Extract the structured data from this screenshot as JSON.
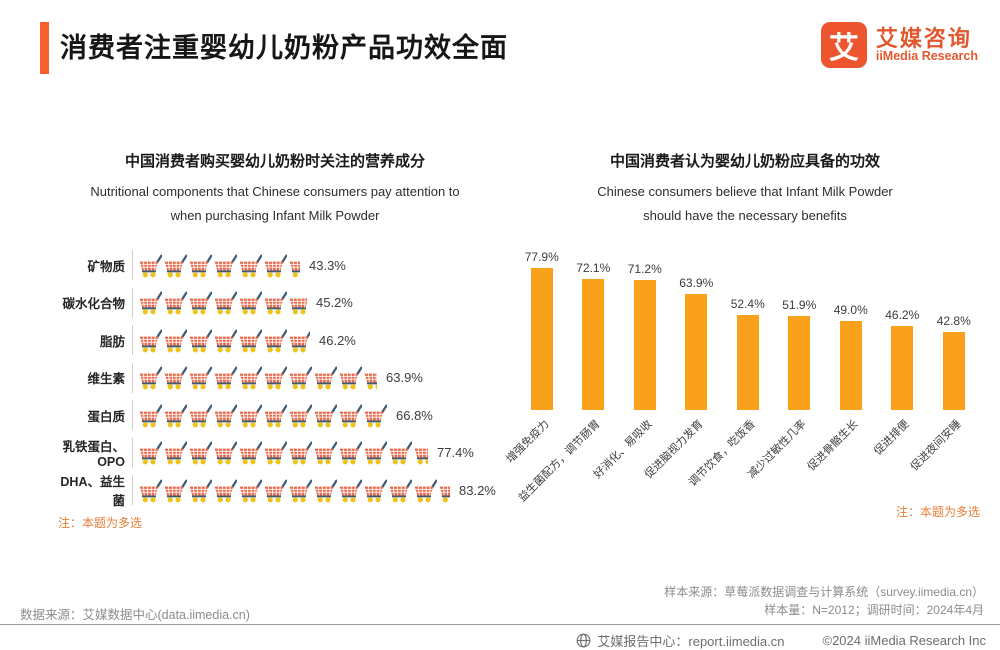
{
  "header": {
    "title": "消费者注重婴幼儿奶粉产品功效全面",
    "logo_mark": "艾",
    "logo_cn": "艾媒咨询",
    "logo_en": "iiMedia Research"
  },
  "chart_data": [
    {
      "type": "bar",
      "variant": "pictogram",
      "icon": "shopping-cart-icon",
      "icons_per_100_percent": 15,
      "title": "中国消费者购买婴幼儿奶粉时关注的营养成分",
      "subtitle_lines": [
        "Nutritional components that Chinese consumers pay attention to",
        "when purchasing Infant Milk Powder"
      ],
      "categories": [
        "矿物质",
        "碳水化合物",
        "脂肪",
        "维生素",
        "蛋白质",
        "乳铁蛋白、OPO",
        "DHA、益生菌"
      ],
      "values": [
        43.3,
        45.2,
        46.2,
        63.9,
        66.8,
        77.4,
        83.2
      ],
      "value_labels": [
        "43.3%",
        "45.2%",
        "46.2%",
        "63.9%",
        "66.8%",
        "77.4%",
        "83.2%"
      ],
      "note": "注：本题为多选",
      "legend": "none",
      "grid": "off"
    },
    {
      "type": "bar",
      "variant": "vertical",
      "title": "中国消费者认为婴幼儿奶粉应具备的功效",
      "subtitle_lines": [
        "Chinese consumers believe that Infant Milk Powder",
        "should have the necessary benefits"
      ],
      "categories": [
        "增强免疫力",
        "益生菌配方，调节肠胃",
        "好消化、易吸收",
        "促进脑视力发育",
        "调节饮食，吃饭香",
        "减少过敏性几率",
        "促进骨骼生长",
        "促进排便",
        "促进夜间安睡"
      ],
      "values": [
        77.9,
        72.1,
        71.2,
        63.9,
        52.4,
        51.9,
        49.0,
        46.2,
        42.8
      ],
      "value_labels": [
        "77.9%",
        "72.1%",
        "71.2%",
        "63.9%",
        "52.4%",
        "51.9%",
        "49.0%",
        "46.2%",
        "42.8%"
      ],
      "bar_color": "#F9A11B",
      "ylim": [
        0,
        100
      ],
      "note": "注：本题为多选",
      "legend": "none",
      "grid": "off"
    }
  ],
  "cart_icon_colors": {
    "basket": "#E8684A",
    "handle": "#3E5C76",
    "wheels": "#F1C21B",
    "grid_lines": "#FFFFFF"
  },
  "footer": {
    "data_source": "数据来源：艾媒数据中心(data.iimedia.cn)",
    "sample_source": "样本来源：草莓派数据调查与计算系统（survey.iimedia.cn）",
    "sample_size": "样本量：N=2012；调研时间：2024年4月",
    "report_center": "艾媒报告中心：report.iimedia.cn",
    "copyright": "©2024  iiMedia Research Inc"
  }
}
